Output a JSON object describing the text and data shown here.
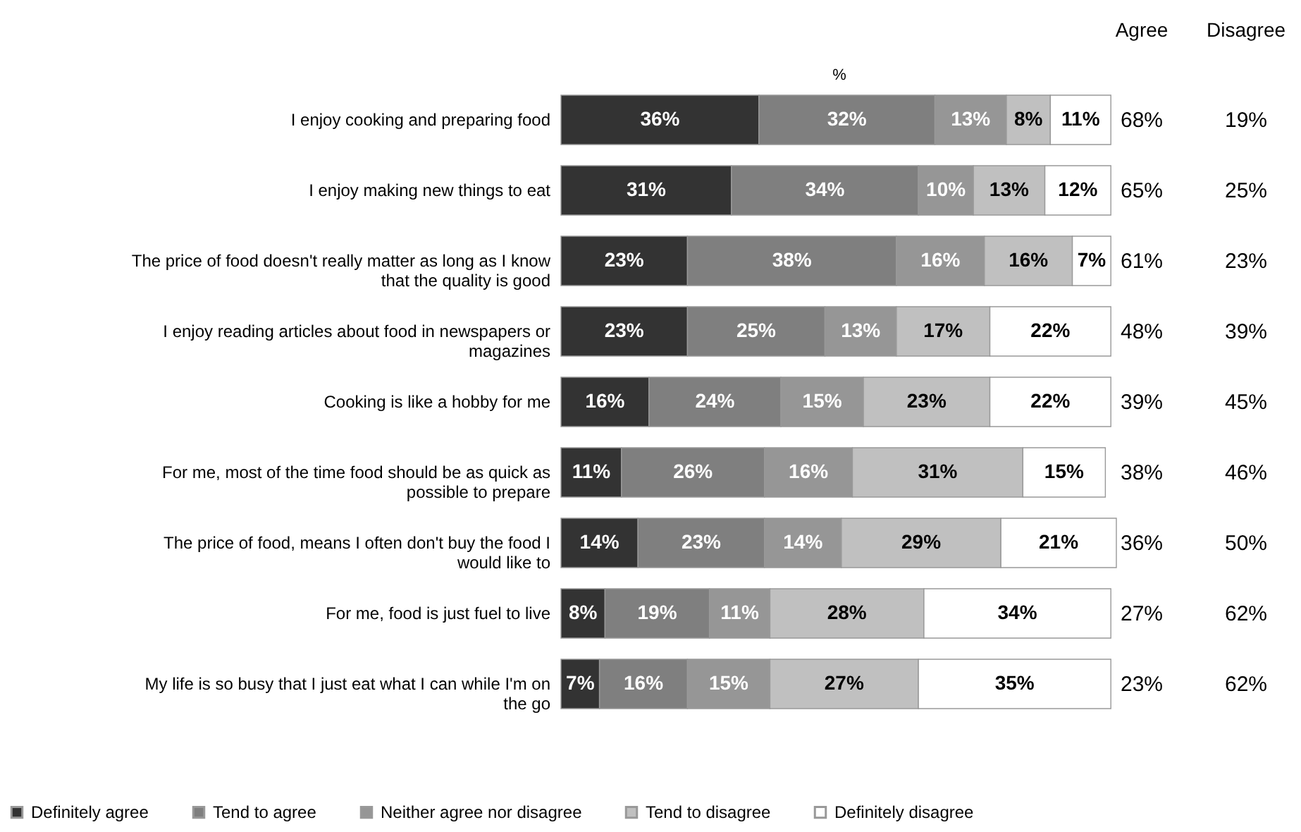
{
  "chart_data": {
    "type": "bar",
    "orientation": "horizontal",
    "stacked": true,
    "xlabel": "%",
    "xlim": [
      0,
      101
    ],
    "tick_labels": "y",
    "legend": "bottom",
    "categories": [
      "I enjoy cooking and preparing food",
      "I enjoy making new things to eat",
      "The price of food doesn't really matter as long as I know that the quality is good",
      "I enjoy reading articles about food in newspapers or magazines",
      "Cooking is like a hobby for me",
      "For me, most of the time food should be as quick as possible to prepare",
      "The price of food, means I often don't buy the food I would like to",
      "For me, food is just fuel to live",
      "My life is so busy that I just eat what I can while I'm on the go"
    ],
    "series": [
      {
        "name": "Definitely agree",
        "color": "#333333",
        "values": [
          36,
          31,
          23,
          23,
          16,
          11,
          14,
          8,
          7
        ],
        "value_labels": [
          "36%",
          "31%",
          "23%",
          "23%",
          "16%",
          "11%",
          "14%",
          "8%",
          "7%"
        ]
      },
      {
        "name": "Tend to agree",
        "color": "#7f7f7f",
        "values": [
          32,
          34,
          38,
          25,
          24,
          26,
          23,
          19,
          16
        ],
        "value_labels": [
          "32%",
          "34%",
          "38%",
          "25%",
          "24%",
          "26%",
          "23%",
          "19%",
          "16%"
        ]
      },
      {
        "name": "Neither agree nor disagree",
        "color": "#969696",
        "values": [
          13,
          10,
          16,
          13,
          15,
          16,
          14,
          11,
          15
        ],
        "value_labels": [
          "13%",
          "10%",
          "16%",
          "13%",
          "15%",
          "16%",
          "14%",
          "11%",
          "15%"
        ]
      },
      {
        "name": "Tend to disagree",
        "color": "#c0c0c0",
        "values": [
          8,
          13,
          16,
          17,
          23,
          31,
          29,
          28,
          27
        ],
        "value_labels": [
          "8%",
          "13%",
          "16%",
          "17%",
          "23%",
          "31%",
          "29%",
          "28%",
          "27%"
        ]
      },
      {
        "name": "Definitely disagree",
        "color": "#ffffff",
        "values": [
          11,
          12,
          7,
          22,
          22,
          15,
          21,
          34,
          35
        ],
        "value_labels": [
          "11%",
          "12%",
          "7%",
          "22%",
          "22%",
          "15%",
          "21%",
          "34%",
          "35%"
        ]
      }
    ],
    "annotations": [
      "Agree",
      "Disagree",
      "68%",
      "19%",
      "65%",
      "25%",
      "61%",
      "23%",
      "48%",
      "39%",
      "39%",
      "45%",
      "38%",
      "46%",
      "36%",
      "50%",
      "27%",
      "62%",
      "23%",
      "62%"
    ]
  }
}
